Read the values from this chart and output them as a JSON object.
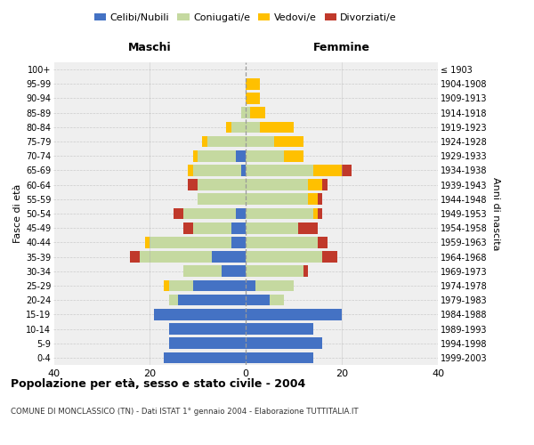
{
  "age_groups_bottom_to_top": [
    "0-4",
    "5-9",
    "10-14",
    "15-19",
    "20-24",
    "25-29",
    "30-34",
    "35-39",
    "40-44",
    "45-49",
    "50-54",
    "55-59",
    "60-64",
    "65-69",
    "70-74",
    "75-79",
    "80-84",
    "85-89",
    "90-94",
    "95-99",
    "100+"
  ],
  "birth_years_bottom_to_top": [
    "1999-2003",
    "1994-1998",
    "1989-1993",
    "1984-1988",
    "1979-1983",
    "1974-1978",
    "1969-1973",
    "1964-1968",
    "1959-1963",
    "1954-1958",
    "1949-1953",
    "1944-1948",
    "1939-1943",
    "1934-1938",
    "1929-1933",
    "1924-1928",
    "1919-1923",
    "1914-1918",
    "1909-1913",
    "1904-1908",
    "≤ 1903"
  ],
  "maschi": {
    "celibi": [
      17,
      16,
      16,
      19,
      14,
      11,
      5,
      7,
      3,
      3,
      2,
      0,
      0,
      1,
      2,
      0,
      0,
      0,
      0,
      0,
      0
    ],
    "coniugati": [
      0,
      0,
      0,
      0,
      2,
      5,
      8,
      15,
      17,
      8,
      11,
      10,
      10,
      10,
      8,
      8,
      3,
      1,
      0,
      0,
      0
    ],
    "vedovi": [
      0,
      0,
      0,
      0,
      0,
      1,
      0,
      0,
      1,
      0,
      0,
      0,
      0,
      1,
      1,
      1,
      1,
      0,
      0,
      0,
      0
    ],
    "divorziati": [
      0,
      0,
      0,
      0,
      0,
      0,
      0,
      2,
      0,
      2,
      2,
      0,
      2,
      0,
      0,
      0,
      0,
      0,
      0,
      0,
      0
    ]
  },
  "femmine": {
    "nubili": [
      14,
      16,
      14,
      20,
      5,
      2,
      0,
      0,
      0,
      0,
      0,
      0,
      0,
      0,
      0,
      0,
      0,
      0,
      0,
      0,
      0
    ],
    "coniugate": [
      0,
      0,
      0,
      0,
      3,
      8,
      12,
      16,
      15,
      11,
      14,
      13,
      13,
      14,
      8,
      6,
      3,
      1,
      0,
      0,
      0
    ],
    "vedove": [
      0,
      0,
      0,
      0,
      0,
      0,
      0,
      0,
      0,
      0,
      1,
      2,
      3,
      6,
      4,
      6,
      7,
      3,
      3,
      3,
      0
    ],
    "divorziate": [
      0,
      0,
      0,
      0,
      0,
      0,
      1,
      3,
      2,
      4,
      1,
      1,
      1,
      2,
      0,
      0,
      0,
      0,
      0,
      0,
      0
    ]
  },
  "colors": {
    "celibi": "#4472c4",
    "coniugati": "#c5d9a0",
    "vedovi": "#ffc000",
    "divorziati": "#c0392b"
  },
  "title": "Popolazione per età, sesso e stato civile - 2004",
  "subtitle": "COMUNE DI MONCLASSICO (TN) - Dati ISTAT 1° gennaio 2004 - Elaborazione TUTTITALIA.IT",
  "xlabel_left": "Maschi",
  "xlabel_right": "Femmine",
  "ylabel_left": "Fasce di età",
  "ylabel_right": "Anni di nascita",
  "xlim": 40,
  "bg_color": "#efefef"
}
